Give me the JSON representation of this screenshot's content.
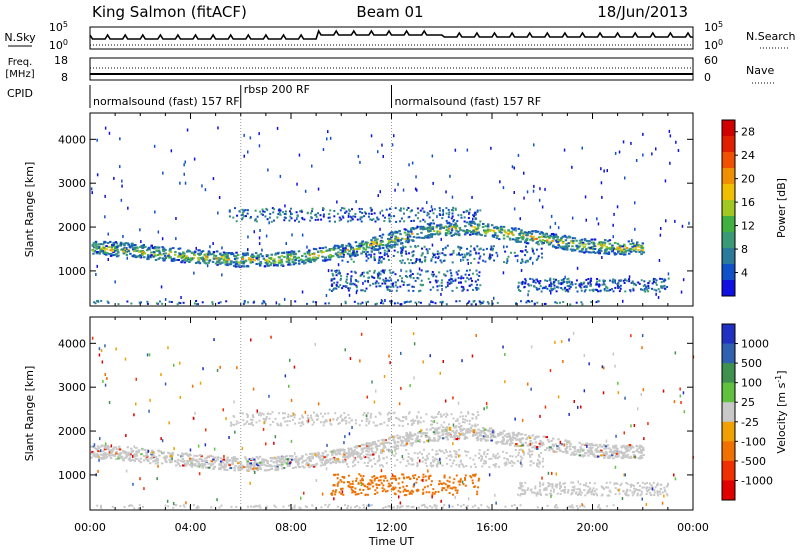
{
  "header": {
    "station": "King Salmon (fitACF)",
    "beam": "Beam 01",
    "date": "18/Jun/2013"
  },
  "strips": {
    "nsky_label": "N.Sky",
    "nsky_ticks": [
      "10^5",
      "10^0"
    ],
    "nsearch_label": "N.Search",
    "nsearch_ticks": [
      "10^5",
      "10^0"
    ],
    "freq_label": "Freq.",
    "freq_unit": "[MHz]",
    "freq_ticks": [
      "18",
      "8"
    ],
    "nave_label": "Nave",
    "nave_ticks": [
      "60",
      "0"
    ],
    "cpid_label": "CPID",
    "cpid_segments": [
      {
        "label": "normalsound (fast) 157 RF",
        "start_hour": 0
      },
      {
        "label": "rbsp 200 RF",
        "start_hour": 6
      },
      {
        "label": "normalsound (fast) 157 RF",
        "start_hour": 12
      }
    ]
  },
  "chart_data": [
    {
      "type": "heatmap",
      "panel": "power",
      "ylabel": "Slant Range [km]",
      "yticks": [
        "1000",
        "2000",
        "3000",
        "4000"
      ],
      "ylim": [
        200,
        4600
      ],
      "xlim": [
        0,
        24
      ],
      "colorbar_label": "Power [dB]",
      "colorbar_ticks": [
        "4",
        "8",
        "12",
        "16",
        "20",
        "24",
        "28"
      ],
      "colorbar_colors": [
        "#1010e0",
        "#1050c8",
        "#2a7a9a",
        "#3a9a78",
        "#40b040",
        "#a0c820",
        "#f0c000",
        "#f09000",
        "#f05000",
        "#e02000",
        "#d00000"
      ],
      "colorbar_range": [
        0,
        30
      ],
      "bands": [
        {
          "x": [
            0,
            1.5,
            3,
            4.5,
            6,
            7.5,
            9,
            10.5,
            12,
            13.5,
            15,
            16.5,
            18,
            19.5,
            21
          ],
          "y": [
            1550,
            1500,
            1400,
            1330,
            1270,
            1280,
            1380,
            1520,
            1750,
            1950,
            2000,
            1870,
            1750,
            1600,
            1550
          ],
          "peak_db": 22
        }
      ]
    },
    {
      "type": "heatmap",
      "panel": "velocity",
      "ylabel": "Slant Range [km]",
      "yticks": [
        "1000",
        "2000",
        "3000",
        "4000"
      ],
      "ylim": [
        200,
        4600
      ],
      "xlim": [
        0,
        24
      ],
      "xticks": [
        "00:00",
        "04:00",
        "08:00",
        "12:00",
        "16:00",
        "20:00",
        "00:00"
      ],
      "xlabel": "Time UT",
      "colorbar_label": "Velocity [m s^-1]",
      "colorbar_ticks": [
        "1000",
        "500",
        "100",
        "25",
        "-25",
        "-100",
        "-500",
        "-1000"
      ],
      "colorbar_colors": [
        "#2030c0",
        "#3060b0",
        "#409050",
        "#60c040",
        "#c8c8c8",
        "#f0a000",
        "#f07000",
        "#f03000",
        "#e00000"
      ]
    }
  ]
}
